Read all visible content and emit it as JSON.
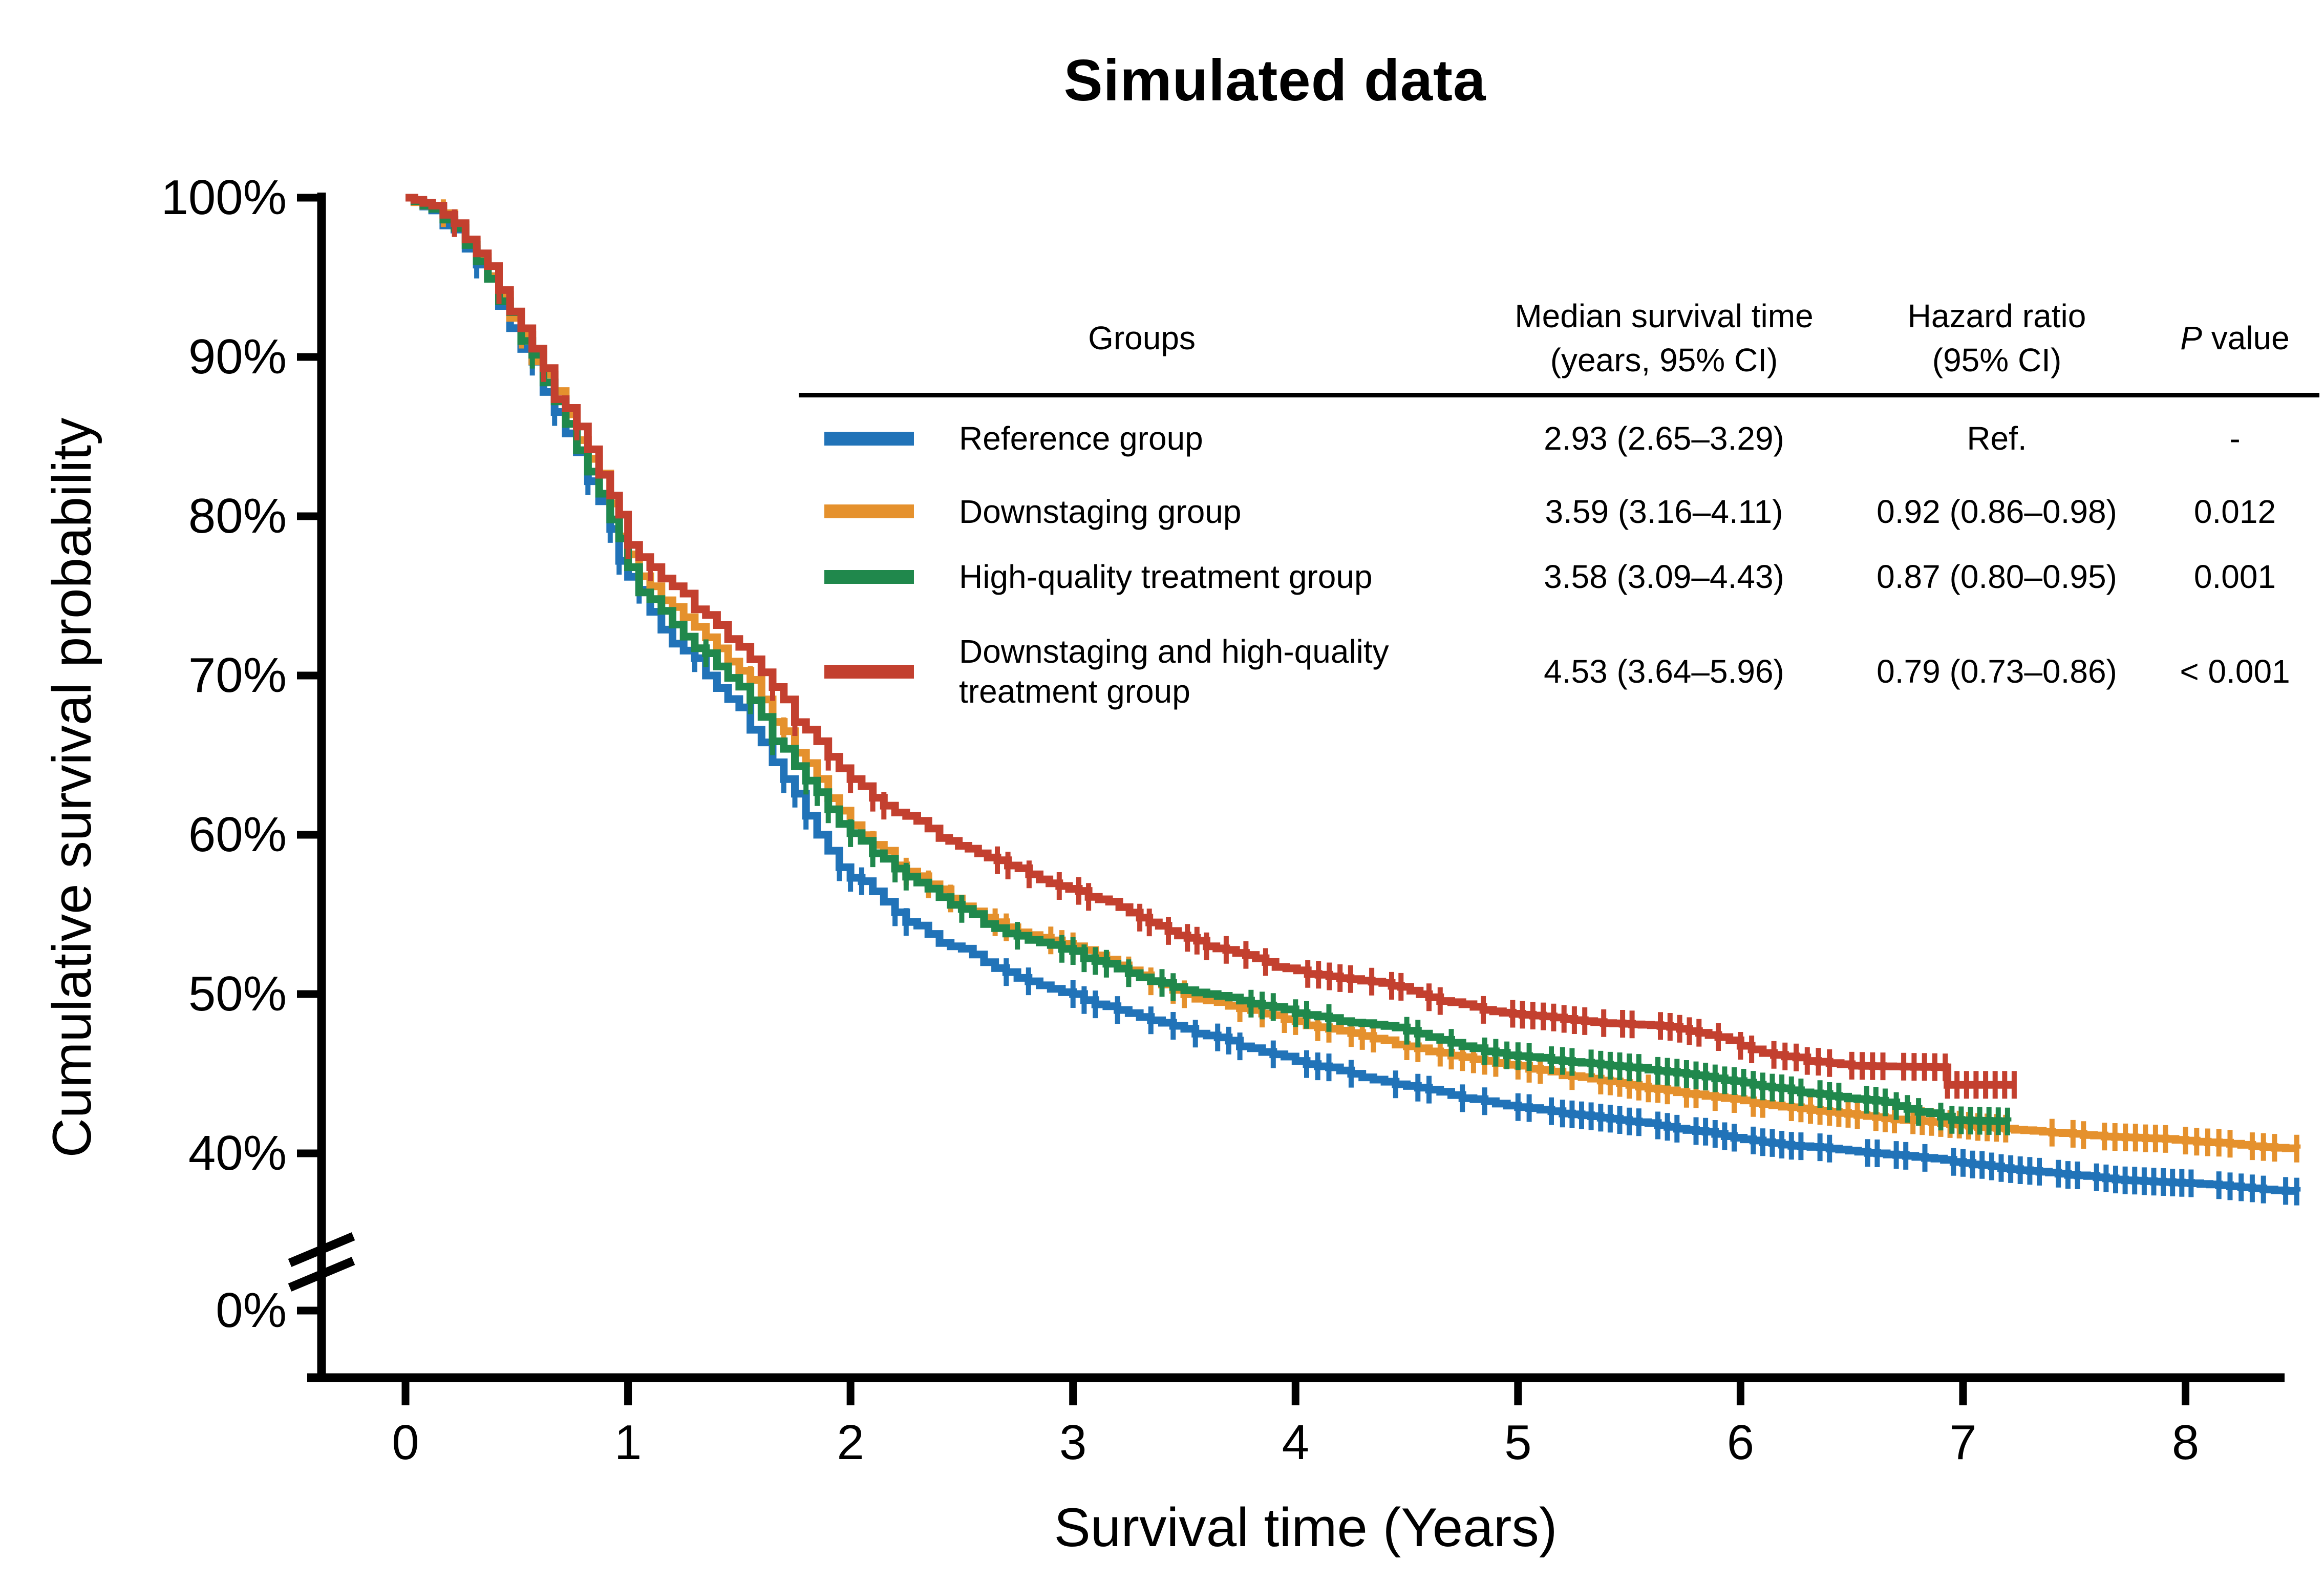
{
  "title": "Simulated data",
  "axes": {
    "y": {
      "label": "Cumulative survival probability",
      "tick_labels": [
        "100%",
        "90%",
        "80%",
        "70%",
        "60%",
        "50%",
        "40%",
        "0%"
      ],
      "broken_axis": true
    },
    "x": {
      "label": "Survival time (Years)",
      "tick_labels": [
        "0",
        "1",
        "2",
        "3",
        "4",
        "5",
        "6",
        "7",
        "8"
      ]
    }
  },
  "table": {
    "headers": {
      "groups": "Groups",
      "median_line1": "Median survival time",
      "median_line2": "(years, 95% CI)",
      "hazard_line1": "Hazard ratio",
      "hazard_line2": "(95% CI)",
      "p_italic": "P",
      "p_rest": " value"
    },
    "rows": [
      {
        "label_line1": "Reference group",
        "label_line2": "",
        "color": "#2173b8",
        "median": "2.93 (2.65–3.29)",
        "hazard": "Ref.",
        "p": "-"
      },
      {
        "label_line1": "Downstaging group",
        "label_line2": "",
        "color": "#e5912d",
        "median": "3.59 (3.16–4.11)",
        "hazard": "0.92 (0.86–0.98)",
        "p": "0.012"
      },
      {
        "label_line1": "High-quality treatment group",
        "label_line2": "",
        "color": "#20884c",
        "median": "3.58 (3.09–4.43)",
        "hazard": "0.87 (0.80–0.95)",
        "p": "0.001"
      },
      {
        "label_line1": "Downstaging and high-quality",
        "label_line2": "treatment group",
        "color": "#c3402f",
        "median": "4.53 (3.64–5.96)",
        "hazard": "0.79 (0.73–0.86)",
        "p": "< 0.001"
      }
    ]
  },
  "chart_data": {
    "type": "line",
    "step_curve": true,
    "title": "Simulated data",
    "xlabel": "Survival time (Years)",
    "ylabel": "Cumulative survival probability",
    "xlim": [
      0,
      8.6
    ],
    "x_ticks": [
      0,
      1,
      2,
      3,
      4,
      5,
      6,
      7,
      8
    ],
    "y_ticks_percent": [
      100,
      90,
      80,
      70,
      60,
      50,
      40,
      0
    ],
    "y_axis_break_between": [
      0,
      37
    ],
    "grid": false,
    "legend_position": "table-upper-right",
    "censor_marks": true,
    "series": [
      {
        "name": "Reference group",
        "color": "#2173b8",
        "points": [
          [
            0,
            100
          ],
          [
            0.12,
            99.2
          ],
          [
            0.22,
            98.0
          ],
          [
            0.32,
            95.8
          ],
          [
            0.42,
            93.2
          ],
          [
            0.52,
            90.5
          ],
          [
            0.62,
            87.8
          ],
          [
            0.72,
            85.2
          ],
          [
            0.82,
            82.2
          ],
          [
            0.92,
            79.2
          ],
          [
            1.0,
            76.2
          ],
          [
            1.1,
            74.0
          ],
          [
            1.2,
            72.0
          ],
          [
            1.35,
            70.0
          ],
          [
            1.5,
            68.0
          ],
          [
            1.6,
            65.8
          ],
          [
            1.7,
            63.5
          ],
          [
            1.8,
            61.2
          ],
          [
            1.9,
            59.0
          ],
          [
            2.0,
            57.3
          ],
          [
            2.15,
            55.8
          ],
          [
            2.3,
            54.3
          ],
          [
            2.45,
            53.0
          ],
          [
            2.6,
            52.0
          ],
          [
            2.8,
            50.8
          ],
          [
            3.0,
            50.0
          ],
          [
            3.2,
            49.0
          ],
          [
            3.4,
            48.2
          ],
          [
            3.6,
            47.4
          ],
          [
            3.8,
            46.6
          ],
          [
            4.0,
            45.8
          ],
          [
            4.2,
            45.2
          ],
          [
            4.4,
            44.5
          ],
          [
            4.6,
            44.0
          ],
          [
            4.8,
            43.4
          ],
          [
            5.0,
            42.9
          ],
          [
            5.2,
            42.5
          ],
          [
            5.5,
            42.0
          ],
          [
            5.8,
            41.4
          ],
          [
            6.1,
            40.7
          ],
          [
            6.4,
            40.3
          ],
          [
            6.7,
            39.9
          ],
          [
            7.0,
            39.4
          ],
          [
            7.3,
            38.9
          ],
          [
            7.6,
            38.5
          ],
          [
            7.9,
            38.2
          ],
          [
            8.15,
            38.0
          ],
          [
            8.3,
            37.8
          ],
          [
            8.5,
            37.6
          ]
        ]
      },
      {
        "name": "Downstaging group",
        "color": "#e5912d",
        "points": [
          [
            0,
            100
          ],
          [
            0.12,
            99.4
          ],
          [
            0.22,
            98.3
          ],
          [
            0.32,
            96.3
          ],
          [
            0.42,
            93.9
          ],
          [
            0.52,
            91.4
          ],
          [
            0.62,
            88.9
          ],
          [
            0.72,
            86.4
          ],
          [
            0.82,
            83.6
          ],
          [
            0.92,
            80.8
          ],
          [
            1.0,
            77.6
          ],
          [
            1.1,
            75.6
          ],
          [
            1.2,
            74.3
          ],
          [
            1.35,
            72.4
          ],
          [
            1.5,
            70.3
          ],
          [
            1.6,
            68.5
          ],
          [
            1.7,
            66.5
          ],
          [
            1.8,
            64.5
          ],
          [
            1.9,
            62.3
          ],
          [
            2.0,
            60.6
          ],
          [
            2.15,
            59.0
          ],
          [
            2.3,
            57.4
          ],
          [
            2.45,
            56.0
          ],
          [
            2.6,
            54.8
          ],
          [
            2.8,
            53.7
          ],
          [
            3.0,
            53.0
          ],
          [
            3.2,
            51.8
          ],
          [
            3.4,
            50.6
          ],
          [
            3.6,
            49.6
          ],
          [
            3.8,
            49.0
          ],
          [
            4.0,
            48.3
          ],
          [
            4.2,
            47.7
          ],
          [
            4.4,
            47.1
          ],
          [
            4.6,
            46.4
          ],
          [
            4.8,
            45.9
          ],
          [
            5.0,
            45.5
          ],
          [
            5.2,
            44.9
          ],
          [
            5.5,
            44.3
          ],
          [
            5.8,
            43.7
          ],
          [
            6.1,
            43.1
          ],
          [
            6.4,
            42.6
          ],
          [
            6.65,
            42.2
          ],
          [
            6.9,
            41.9
          ],
          [
            7.15,
            41.6
          ],
          [
            7.4,
            41.3
          ],
          [
            7.73,
            41.0
          ],
          [
            8.0,
            40.8
          ],
          [
            8.2,
            40.6
          ],
          [
            8.35,
            40.4
          ],
          [
            8.5,
            40.3
          ]
        ]
      },
      {
        "name": "High-quality treatment group",
        "color": "#20884c",
        "points": [
          [
            0,
            100
          ],
          [
            0.12,
            99.3
          ],
          [
            0.22,
            98.1
          ],
          [
            0.32,
            96.0
          ],
          [
            0.42,
            93.5
          ],
          [
            0.52,
            91.0
          ],
          [
            0.62,
            88.4
          ],
          [
            0.72,
            85.8
          ],
          [
            0.82,
            82.8
          ],
          [
            0.92,
            79.8
          ],
          [
            1.0,
            76.8
          ],
          [
            1.1,
            74.8
          ],
          [
            1.2,
            73.2
          ],
          [
            1.35,
            71.4
          ],
          [
            1.5,
            69.3
          ],
          [
            1.6,
            67.4
          ],
          [
            1.7,
            65.4
          ],
          [
            1.8,
            63.4
          ],
          [
            1.9,
            61.6
          ],
          [
            2.0,
            60.1
          ],
          [
            2.15,
            58.5
          ],
          [
            2.3,
            57.0
          ],
          [
            2.45,
            55.6
          ],
          [
            2.6,
            54.4
          ],
          [
            2.8,
            53.4
          ],
          [
            3.0,
            52.7
          ],
          [
            3.2,
            51.6
          ],
          [
            3.4,
            50.7
          ],
          [
            3.6,
            50.0
          ],
          [
            3.8,
            49.4
          ],
          [
            4.0,
            48.8
          ],
          [
            4.2,
            48.3
          ],
          [
            4.4,
            48.0
          ],
          [
            4.6,
            47.3
          ],
          [
            4.8,
            46.6
          ],
          [
            5.0,
            46.1
          ],
          [
            5.2,
            45.8
          ],
          [
            5.5,
            45.4
          ],
          [
            5.8,
            44.9
          ],
          [
            6.1,
            44.2
          ],
          [
            6.4,
            43.6
          ],
          [
            6.65,
            43.2
          ],
          [
            6.8,
            42.6
          ],
          [
            6.95,
            42.1
          ],
          [
            7.2,
            42.0
          ]
        ]
      },
      {
        "name": "Downstaging and high-quality treatment group",
        "color": "#c3402f",
        "points": [
          [
            0,
            100
          ],
          [
            0.12,
            99.5
          ],
          [
            0.22,
            98.4
          ],
          [
            0.32,
            96.5
          ],
          [
            0.42,
            94.2
          ],
          [
            0.52,
            91.8
          ],
          [
            0.62,
            89.3
          ],
          [
            0.72,
            86.8
          ],
          [
            0.82,
            84.2
          ],
          [
            0.92,
            81.3
          ],
          [
            1.0,
            78.2
          ],
          [
            1.1,
            76.8
          ],
          [
            1.2,
            75.6
          ],
          [
            1.35,
            73.8
          ],
          [
            1.5,
            71.8
          ],
          [
            1.6,
            70.2
          ],
          [
            1.7,
            68.5
          ],
          [
            1.8,
            66.6
          ],
          [
            1.9,
            64.9
          ],
          [
            2.0,
            63.5
          ],
          [
            2.2,
            61.4
          ],
          [
            2.4,
            59.8
          ],
          [
            2.66,
            58.4
          ],
          [
            2.85,
            57.2
          ],
          [
            3.07,
            56.1
          ],
          [
            3.3,
            54.8
          ],
          [
            3.6,
            53.0
          ],
          [
            3.91,
            51.7
          ],
          [
            4.2,
            51.0
          ],
          [
            4.39,
            50.7
          ],
          [
            4.6,
            49.8
          ],
          [
            4.8,
            49.2
          ],
          [
            5.02,
            48.7
          ],
          [
            5.3,
            48.3
          ],
          [
            5.64,
            48.0
          ],
          [
            5.9,
            47.3
          ],
          [
            6.1,
            46.3
          ],
          [
            6.3,
            45.8
          ],
          [
            6.5,
            45.5
          ],
          [
            6.92,
            45.4
          ],
          [
            6.93,
            44.3
          ],
          [
            7.23,
            44.3
          ]
        ]
      }
    ]
  }
}
